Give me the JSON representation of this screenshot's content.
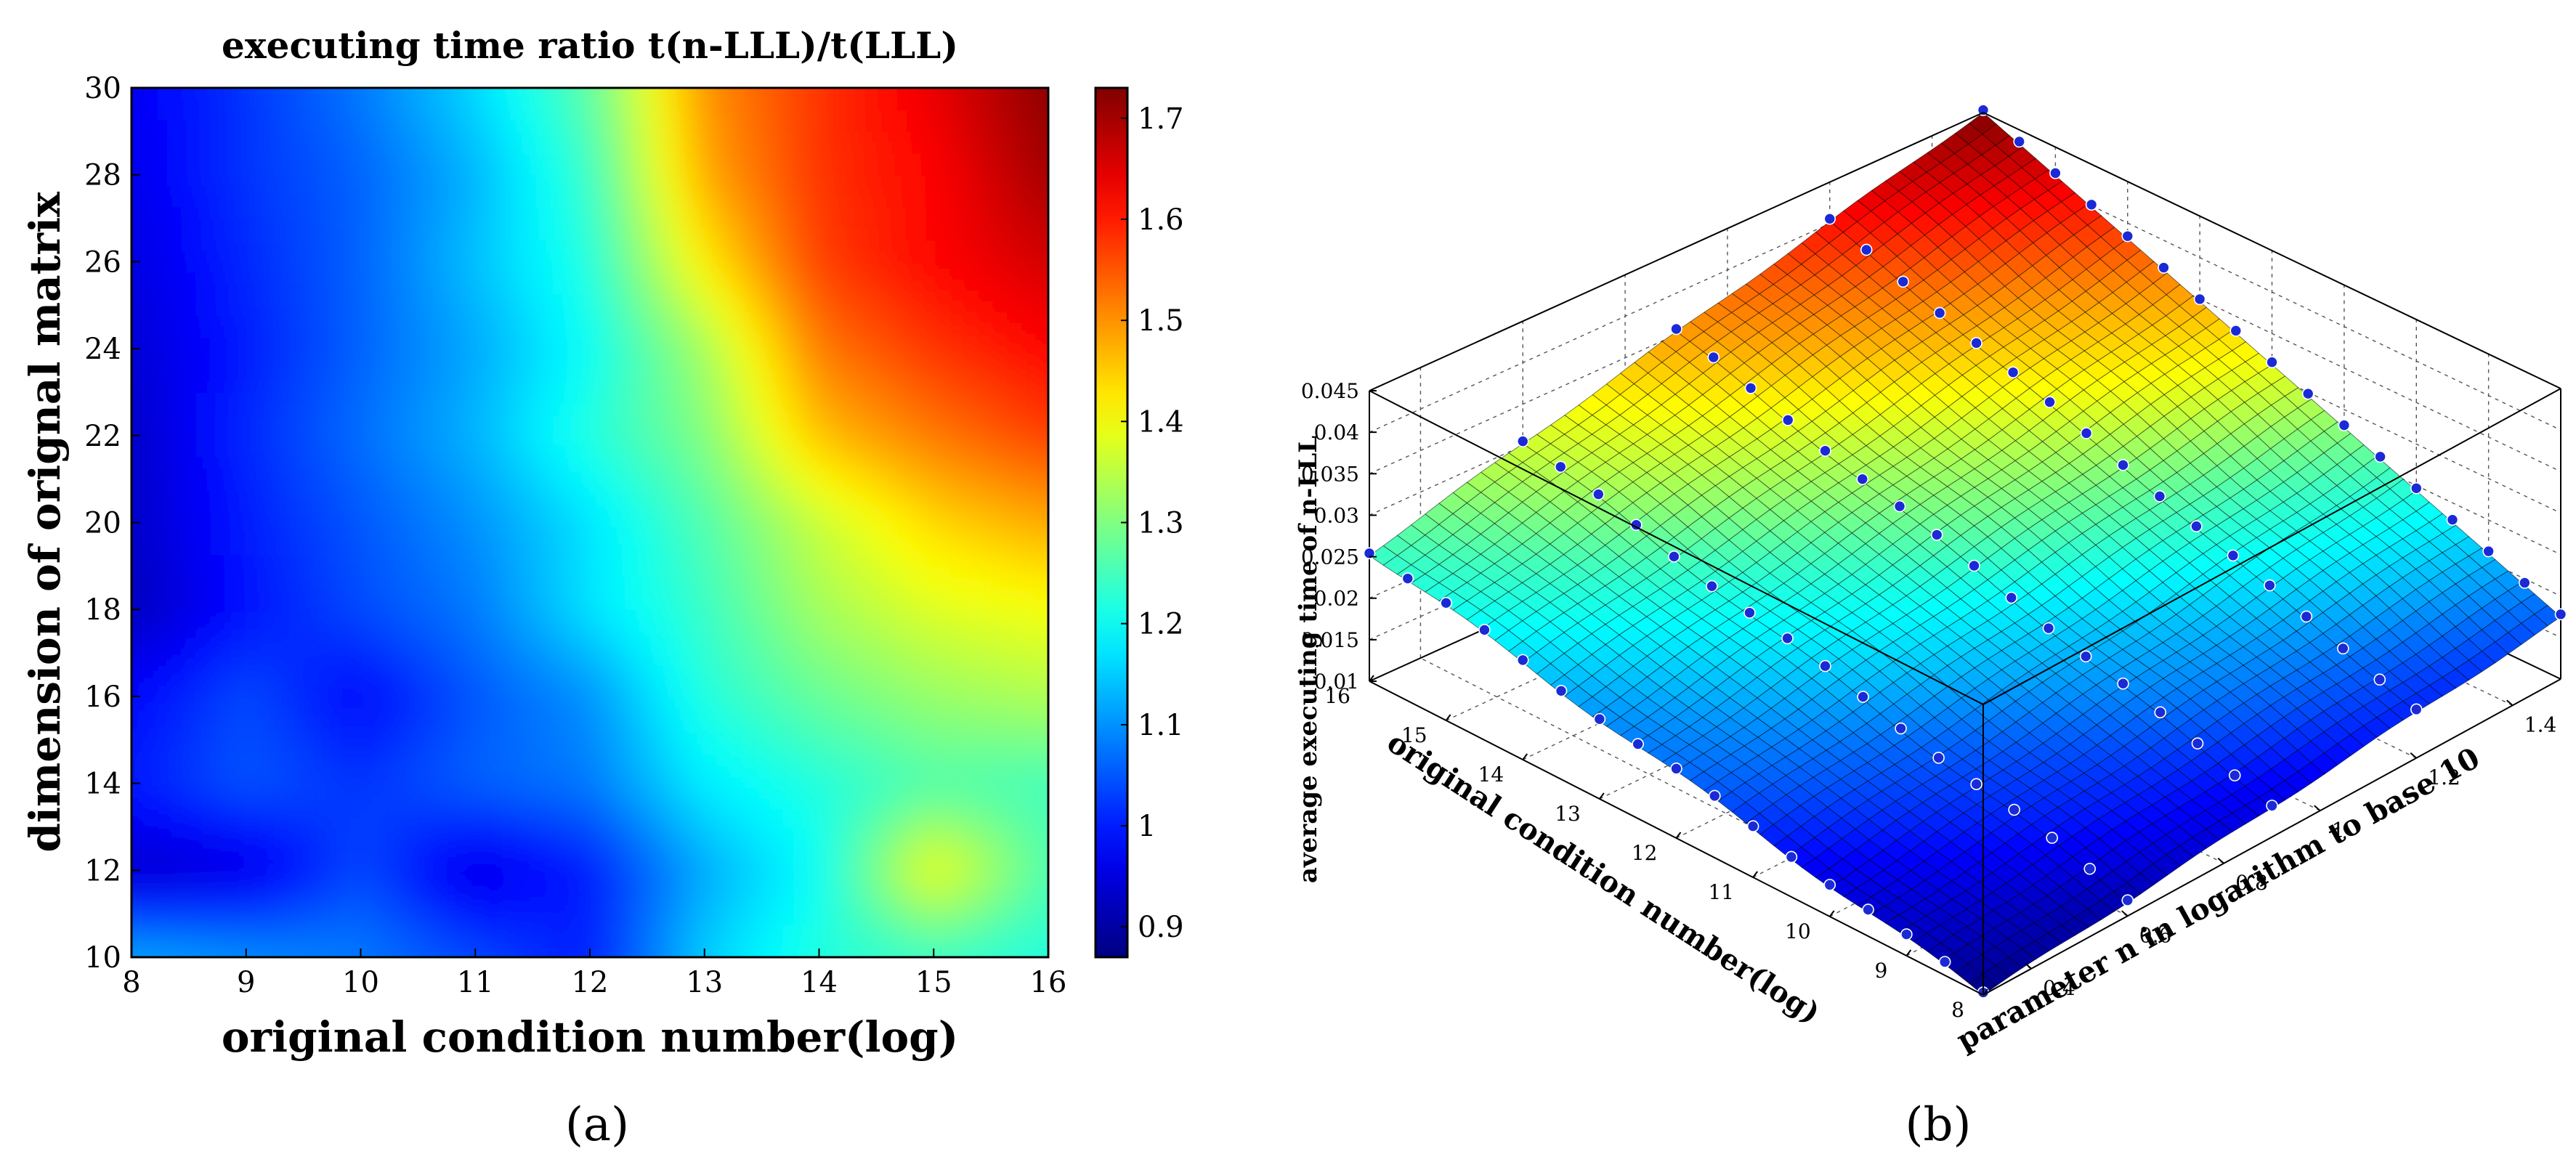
{
  "chart_data": [
    {
      "type": "heatmap",
      "title": "executing time ratio t(n-LLL)/t(LLL)",
      "xlabel": "original condition number(log)",
      "ylabel": "dimension of orignal matrix",
      "xlim": [
        8,
        16
      ],
      "ylim": [
        10,
        30
      ],
      "x_ticks": [
        "8",
        "9",
        "10",
        "11",
        "12",
        "13",
        "14",
        "15",
        "16"
      ],
      "y_ticks": [
        "10",
        "12",
        "14",
        "16",
        "18",
        "20",
        "22",
        "24",
        "26",
        "28",
        "30"
      ],
      "colorbar": {
        "range": [
          0.87,
          1.73
        ],
        "ticks": [
          "0.9",
          "1",
          "1.1",
          "1.2",
          "1.3",
          "1.4",
          "1.5",
          "1.6",
          "1.7"
        ]
      },
      "grid_x": [
        8,
        9,
        10,
        11,
        12,
        13,
        14,
        15,
        16
      ],
      "grid_y": [
        10,
        12,
        14,
        16,
        18,
        20,
        22,
        24,
        26,
        28,
        30
      ],
      "values": [
        [
          1.12,
          1.1,
          1.08,
          1.04,
          1.0,
          1.15,
          1.22,
          1.24,
          1.22
        ],
        [
          0.93,
          0.95,
          1.04,
          0.95,
          1.0,
          1.12,
          1.2,
          1.4,
          1.26
        ],
        [
          1.0,
          1.05,
          1.02,
          1.06,
          1.08,
          1.18,
          1.22,
          1.26,
          1.25
        ],
        [
          0.98,
          1.04,
          0.98,
          1.05,
          1.1,
          1.22,
          1.28,
          1.32,
          1.34
        ],
        [
          0.92,
          0.99,
          1.04,
          1.08,
          1.17,
          1.24,
          1.33,
          1.38,
          1.4
        ],
        [
          0.93,
          1.0,
          1.05,
          1.1,
          1.17,
          1.26,
          1.36,
          1.44,
          1.48
        ],
        [
          0.93,
          1.01,
          1.07,
          1.13,
          1.22,
          1.3,
          1.46,
          1.52,
          1.57
        ],
        [
          0.94,
          1.0,
          1.06,
          1.12,
          1.2,
          1.33,
          1.52,
          1.58,
          1.62
        ],
        [
          0.95,
          1.01,
          1.06,
          1.14,
          1.22,
          1.42,
          1.57,
          1.62,
          1.66
        ],
        [
          0.96,
          1.02,
          1.06,
          1.13,
          1.24,
          1.48,
          1.58,
          1.62,
          1.7
        ],
        [
          0.97,
          1.02,
          1.08,
          1.16,
          1.27,
          1.5,
          1.58,
          1.64,
          1.72
        ]
      ]
    },
    {
      "type": "surface",
      "zlabel": "average executing time of n-LLL",
      "xlabel": "original condition number(log)",
      "ylabel": "parameter n in logarithm to base 10",
      "xlim": [
        8,
        16
      ],
      "ylim": [
        0.3,
        1.5
      ],
      "zlim": [
        0.01,
        0.045
      ],
      "x_ticks": [
        "8",
        "9",
        "10",
        "11",
        "12",
        "13",
        "14",
        "15",
        "16"
      ],
      "y_ticks": [
        "0.4",
        "0.6",
        "0.8",
        "1",
        "1.2",
        "1.4"
      ],
      "z_ticks": [
        "0.01",
        "0.015",
        "0.02",
        "0.025",
        "0.03",
        "0.035",
        "0.04",
        "0.045"
      ],
      "corner_values": [
        {
          "condition_number": 16,
          "n": 0.3,
          "time": 0.0255
        },
        {
          "condition_number": 16,
          "n": 1.5,
          "time": 0.045
        },
        {
          "condition_number": 8,
          "n": 0.3,
          "time": 0.01
        },
        {
          "condition_number": 8,
          "n": 1.5,
          "time": 0.0175
        }
      ]
    }
  ],
  "captions": {
    "a": "(a)",
    "b": "(b)"
  }
}
